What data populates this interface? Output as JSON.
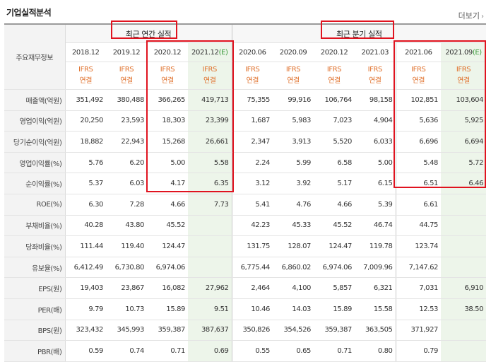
{
  "title": "기업실적분석",
  "more_label": "더보기",
  "row_header": "주요재무정보",
  "groups": {
    "annual": "최근 연간 실적",
    "quarter": "최근 분기 실적"
  },
  "periods": [
    {
      "label": "2018.12",
      "est": ""
    },
    {
      "label": "2019.12",
      "est": ""
    },
    {
      "label": "2020.12",
      "est": ""
    },
    {
      "label": "2021.12",
      "est": "(E)"
    },
    {
      "label": "2020.06",
      "est": ""
    },
    {
      "label": "2020.09",
      "est": ""
    },
    {
      "label": "2020.12",
      "est": ""
    },
    {
      "label": "2021.03",
      "est": ""
    },
    {
      "label": "2021.06",
      "est": ""
    },
    {
      "label": "2021.09",
      "est": "(E)"
    }
  ],
  "ifrs": {
    "line1": "IFRS",
    "line2": "연결"
  },
  "rows": [
    {
      "label": "매출액(억원)",
      "values": [
        "351,492",
        "380,488",
        "366,265",
        "419,713",
        "75,355",
        "99,916",
        "106,764",
        "98,158",
        "102,851",
        "103,604"
      ]
    },
    {
      "label": "영업이익(억원)",
      "values": [
        "20,250",
        "23,593",
        "18,303",
        "23,399",
        "1,687",
        "5,983",
        "7,023",
        "4,904",
        "5,636",
        "5,925"
      ]
    },
    {
      "label": "당기순이익(억원)",
      "values": [
        "18,882",
        "22,943",
        "15,268",
        "26,661",
        "2,347",
        "3,913",
        "5,520",
        "6,033",
        "6,696",
        "6,694"
      ]
    },
    {
      "label": "영업이익률(%)",
      "values": [
        "5.76",
        "6.20",
        "5.00",
        "5.58",
        "2.24",
        "5.99",
        "6.58",
        "5.00",
        "5.48",
        "5.72"
      ]
    },
    {
      "label": "순이익률(%)",
      "values": [
        "5.37",
        "6.03",
        "4.17",
        "6.35",
        "3.12",
        "3.92",
        "5.17",
        "6.15",
        "6.51",
        "6.46"
      ]
    },
    {
      "label": "ROE(%)",
      "values": [
        "6.30",
        "7.28",
        "4.66",
        "7.73",
        "5.41",
        "4.76",
        "4.66",
        "5.39",
        "6.61",
        ""
      ]
    },
    {
      "label": "부채비율(%)",
      "values": [
        "40.28",
        "43.80",
        "45.52",
        "",
        "42.23",
        "45.33",
        "45.52",
        "46.74",
        "44.75",
        ""
      ]
    },
    {
      "label": "당좌비율(%)",
      "values": [
        "111.44",
        "119.40",
        "124.47",
        "",
        "131.75",
        "128.07",
        "124.47",
        "119.78",
        "123.74",
        ""
      ]
    },
    {
      "label": "유보율(%)",
      "values": [
        "6,412.49",
        "6,730.80",
        "6,974.06",
        "",
        "6,775.44",
        "6,860.02",
        "6,974.06",
        "7,009.96",
        "7,147.62",
        ""
      ]
    },
    {
      "label": "EPS(원)",
      "values": [
        "19,403",
        "23,867",
        "16,082",
        "27,962",
        "2,464",
        "4,100",
        "5,857",
        "6,321",
        "7,031",
        "6,910"
      ]
    },
    {
      "label": "PER(배)",
      "values": [
        "9.79",
        "10.73",
        "15.89",
        "9.51",
        "10.46",
        "14.03",
        "15.89",
        "15.58",
        "12.53",
        "38.50"
      ]
    },
    {
      "label": "BPS(원)",
      "values": [
        "323,432",
        "345,993",
        "359,387",
        "387,637",
        "350,826",
        "354,526",
        "359,387",
        "363,505",
        "371,927",
        ""
      ]
    },
    {
      "label": "PBR(배)",
      "values": [
        "0.59",
        "0.74",
        "0.71",
        "0.69",
        "0.55",
        "0.65",
        "0.71",
        "0.80",
        "0.79",
        ""
      ]
    }
  ],
  "colors": {
    "ifrs": "#e0712c",
    "highlight_box": "#e0131f",
    "estimate_bg": "#edf5ea"
  }
}
